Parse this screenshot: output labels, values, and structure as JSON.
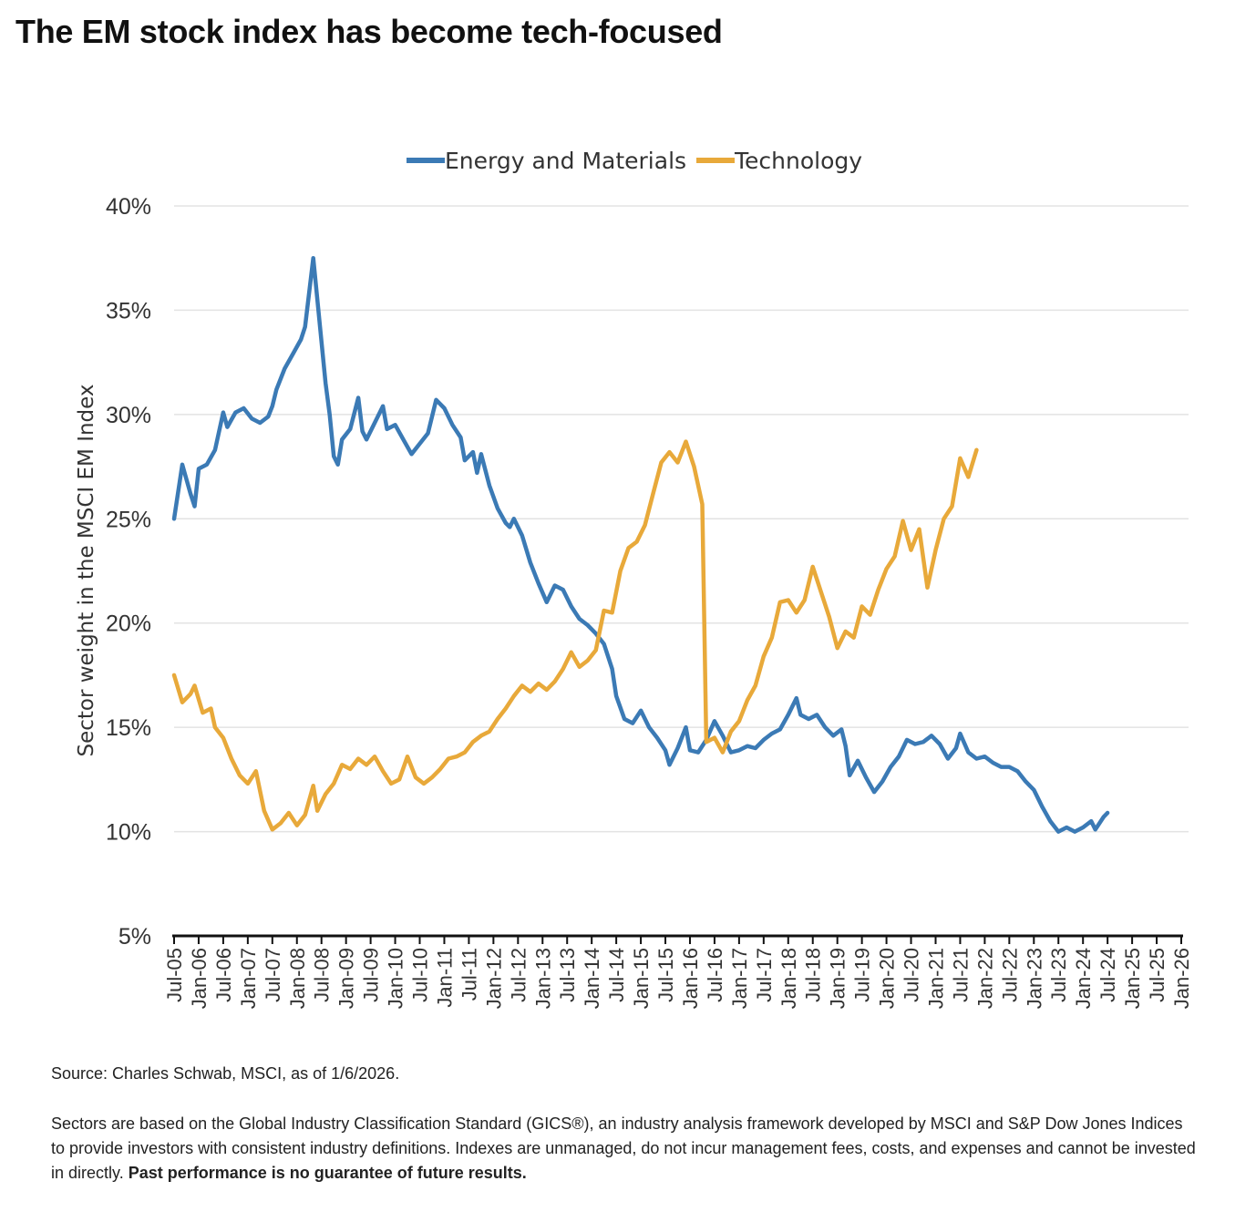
{
  "page": {
    "title": "The EM stock index has become tech-focused",
    "source": "Source: Charles Schwab, MSCI, as of 1/6/2026.",
    "disclaimer": "Sectors are based on the Global Industry Classification Standard (GICS®), an industry analysis framework developed by MSCI and S&P Dow Jones Indices to provide investors with consistent industry definitions. Indexes are unmanaged, do not incur management fees, costs, and expenses and cannot be invested in directly. ",
    "disclaimer_bold": "Past performance is no guarantee of future results."
  },
  "chart_data": {
    "type": "line",
    "title": "The EM stock index has become tech-focused",
    "xlabel": "",
    "ylabel": "Sector weight in the MSCI EM Index",
    "ylim": [
      5,
      40
    ],
    "y_ticks": [
      "5%",
      "10%",
      "15%",
      "20%",
      "25%",
      "30%",
      "35%",
      "40%"
    ],
    "x_range": [
      "2005-07",
      "2026-01"
    ],
    "x_ticks": [
      "Jul-05",
      "Jan-06",
      "Jul-06",
      "Jan-07",
      "Jul-07",
      "Jan-08",
      "Jul-08",
      "Jan-09",
      "Jul-09",
      "Jan-10",
      "Jul-10",
      "Jan-11",
      "Jul-11",
      "Jan-12",
      "Jul-12",
      "Jan-13",
      "Jul-13",
      "Jan-14",
      "Jul-14",
      "Jan-15",
      "Jul-15",
      "Jan-16",
      "Jul-16",
      "Jan-17",
      "Jul-17",
      "Jan-18",
      "Jul-18",
      "Jan-19",
      "Jul-19",
      "Jan-20",
      "Jul-20",
      "Jan-21",
      "Jul-21",
      "Jan-22",
      "Jul-22",
      "Jan-23",
      "Jul-23",
      "Jan-24",
      "Jul-24",
      "Jan-25",
      "Jul-25",
      "Jan-26"
    ],
    "grid": true,
    "legend_position": "top-center",
    "series": [
      {
        "name": "Energy and Materials",
        "color": "#3b7ab5",
        "points": [
          [
            "2005-07",
            25.0
          ],
          [
            "2005-09",
            27.6
          ],
          [
            "2005-11",
            26.2
          ],
          [
            "2005-12",
            25.6
          ],
          [
            "2006-01",
            27.4
          ],
          [
            "2006-03",
            27.6
          ],
          [
            "2006-05",
            28.3
          ],
          [
            "2006-07",
            30.1
          ],
          [
            "2006-08",
            29.4
          ],
          [
            "2006-10",
            30.1
          ],
          [
            "2006-12",
            30.3
          ],
          [
            "2007-02",
            29.8
          ],
          [
            "2007-04",
            29.6
          ],
          [
            "2007-06",
            29.9
          ],
          [
            "2007-07",
            30.4
          ],
          [
            "2007-08",
            31.2
          ],
          [
            "2007-10",
            32.2
          ],
          [
            "2007-12",
            32.9
          ],
          [
            "2008-02",
            33.6
          ],
          [
            "2008-03",
            34.2
          ],
          [
            "2008-05",
            37.5
          ],
          [
            "2008-06",
            35.5
          ],
          [
            "2008-07",
            33.5
          ],
          [
            "2008-08",
            31.5
          ],
          [
            "2008-09",
            30.0
          ],
          [
            "2008-10",
            28.0
          ],
          [
            "2008-11",
            27.6
          ],
          [
            "2008-12",
            28.8
          ],
          [
            "2009-02",
            29.3
          ],
          [
            "2009-04",
            30.8
          ],
          [
            "2009-05",
            29.2
          ],
          [
            "2009-06",
            28.8
          ],
          [
            "2009-08",
            29.6
          ],
          [
            "2009-10",
            30.4
          ],
          [
            "2009-11",
            29.3
          ],
          [
            "2010-01",
            29.5
          ],
          [
            "2010-03",
            28.8
          ],
          [
            "2010-05",
            28.1
          ],
          [
            "2010-07",
            28.6
          ],
          [
            "2010-09",
            29.1
          ],
          [
            "2010-11",
            30.7
          ],
          [
            "2011-01",
            30.3
          ],
          [
            "2011-03",
            29.5
          ],
          [
            "2011-05",
            28.9
          ],
          [
            "2011-06",
            27.8
          ],
          [
            "2011-08",
            28.2
          ],
          [
            "2011-09",
            27.2
          ],
          [
            "2011-10",
            28.1
          ],
          [
            "2011-12",
            26.6
          ],
          [
            "2012-02",
            25.5
          ],
          [
            "2012-04",
            24.8
          ],
          [
            "2012-05",
            24.6
          ],
          [
            "2012-06",
            25.0
          ],
          [
            "2012-08",
            24.2
          ],
          [
            "2012-10",
            22.9
          ],
          [
            "2012-12",
            21.9
          ],
          [
            "2013-02",
            21.0
          ],
          [
            "2013-04",
            21.8
          ],
          [
            "2013-06",
            21.6
          ],
          [
            "2013-08",
            20.8
          ],
          [
            "2013-10",
            20.2
          ],
          [
            "2013-12",
            19.9
          ],
          [
            "2014-02",
            19.5
          ],
          [
            "2014-04",
            19.0
          ],
          [
            "2014-06",
            17.8
          ],
          [
            "2014-07",
            16.5
          ],
          [
            "2014-09",
            15.4
          ],
          [
            "2014-11",
            15.2
          ],
          [
            "2015-01",
            15.8
          ],
          [
            "2015-03",
            15.0
          ],
          [
            "2015-05",
            14.5
          ],
          [
            "2015-07",
            13.9
          ],
          [
            "2015-08",
            13.2
          ],
          [
            "2015-10",
            14.0
          ],
          [
            "2015-12",
            15.0
          ],
          [
            "2016-01",
            13.9
          ],
          [
            "2016-03",
            13.8
          ],
          [
            "2016-05",
            14.4
          ],
          [
            "2016-07",
            15.3
          ],
          [
            "2016-09",
            14.6
          ],
          [
            "2016-11",
            13.8
          ],
          [
            "2017-01",
            13.9
          ],
          [
            "2017-03",
            14.1
          ],
          [
            "2017-05",
            14.0
          ],
          [
            "2017-07",
            14.4
          ],
          [
            "2017-09",
            14.7
          ],
          [
            "2017-11",
            14.9
          ],
          [
            "2018-01",
            15.6
          ],
          [
            "2018-03",
            16.4
          ],
          [
            "2018-04",
            15.6
          ],
          [
            "2018-06",
            15.4
          ],
          [
            "2018-08",
            15.6
          ],
          [
            "2018-10",
            15.0
          ],
          [
            "2018-12",
            14.6
          ],
          [
            "2019-02",
            14.9
          ],
          [
            "2019-03",
            14.1
          ],
          [
            "2019-04",
            12.7
          ],
          [
            "2019-06",
            13.4
          ],
          [
            "2019-08",
            12.6
          ],
          [
            "2019-10",
            11.9
          ],
          [
            "2019-12",
            12.4
          ],
          [
            "2020-02",
            13.1
          ],
          [
            "2020-04",
            13.6
          ],
          [
            "2020-06",
            14.4
          ],
          [
            "2020-08",
            14.2
          ],
          [
            "2020-10",
            14.3
          ],
          [
            "2020-12",
            14.6
          ],
          [
            "2021-02",
            14.2
          ],
          [
            "2021-04",
            13.5
          ],
          [
            "2021-06",
            14.0
          ],
          [
            "2021-07",
            14.7
          ],
          [
            "2021-09",
            13.8
          ],
          [
            "2021-11",
            13.5
          ],
          [
            "2022-01",
            13.6
          ],
          [
            "2022-03",
            13.3
          ],
          [
            "2022-05",
            13.1
          ],
          [
            "2022-07",
            13.1
          ],
          [
            "2022-09",
            12.9
          ],
          [
            "2022-11",
            12.4
          ],
          [
            "2023-01",
            12.0
          ],
          [
            "2023-03",
            11.2
          ],
          [
            "2023-05",
            10.5
          ],
          [
            "2023-07",
            10.0
          ],
          [
            "2023-09",
            10.2
          ],
          [
            "2023-11",
            10.0
          ],
          [
            "2024-01",
            10.2
          ],
          [
            "2024-03",
            10.5
          ],
          [
            "2024-04",
            10.1
          ],
          [
            "2024-06",
            10.7
          ],
          [
            "2024-07",
            10.9
          ]
        ]
      },
      {
        "name": "Technology",
        "color": "#e8a93a",
        "points": [
          [
            "2005-07",
            17.5
          ],
          [
            "2005-09",
            16.2
          ],
          [
            "2005-11",
            16.6
          ],
          [
            "2005-12",
            17.0
          ],
          [
            "2006-02",
            15.7
          ],
          [
            "2006-04",
            15.9
          ],
          [
            "2006-05",
            15.0
          ],
          [
            "2006-07",
            14.5
          ],
          [
            "2006-09",
            13.5
          ],
          [
            "2006-11",
            12.7
          ],
          [
            "2007-01",
            12.3
          ],
          [
            "2007-03",
            12.9
          ],
          [
            "2007-05",
            11.0
          ],
          [
            "2007-07",
            10.1
          ],
          [
            "2007-09",
            10.4
          ],
          [
            "2007-11",
            10.9
          ],
          [
            "2008-01",
            10.3
          ],
          [
            "2008-03",
            10.8
          ],
          [
            "2008-05",
            12.2
          ],
          [
            "2008-06",
            11.0
          ],
          [
            "2008-08",
            11.8
          ],
          [
            "2008-10",
            12.3
          ],
          [
            "2008-12",
            13.2
          ],
          [
            "2009-02",
            13.0
          ],
          [
            "2009-04",
            13.5
          ],
          [
            "2009-06",
            13.2
          ],
          [
            "2009-08",
            13.6
          ],
          [
            "2009-10",
            12.9
          ],
          [
            "2009-12",
            12.3
          ],
          [
            "2010-02",
            12.5
          ],
          [
            "2010-04",
            13.6
          ],
          [
            "2010-06",
            12.6
          ],
          [
            "2010-08",
            12.3
          ],
          [
            "2010-10",
            12.6
          ],
          [
            "2010-12",
            13.0
          ],
          [
            "2011-02",
            13.5
          ],
          [
            "2011-04",
            13.6
          ],
          [
            "2011-06",
            13.8
          ],
          [
            "2011-08",
            14.3
          ],
          [
            "2011-10",
            14.6
          ],
          [
            "2011-12",
            14.8
          ],
          [
            "2012-02",
            15.4
          ],
          [
            "2012-04",
            15.9
          ],
          [
            "2012-06",
            16.5
          ],
          [
            "2012-08",
            17.0
          ],
          [
            "2012-10",
            16.7
          ],
          [
            "2012-12",
            17.1
          ],
          [
            "2013-02",
            16.8
          ],
          [
            "2013-04",
            17.2
          ],
          [
            "2013-06",
            17.8
          ],
          [
            "2013-08",
            18.6
          ],
          [
            "2013-10",
            17.9
          ],
          [
            "2013-12",
            18.2
          ],
          [
            "2014-02",
            18.7
          ],
          [
            "2014-04",
            20.6
          ],
          [
            "2014-06",
            20.5
          ],
          [
            "2014-08",
            22.5
          ],
          [
            "2014-10",
            23.6
          ],
          [
            "2014-12",
            23.9
          ],
          [
            "2015-02",
            24.7
          ],
          [
            "2015-04",
            26.2
          ],
          [
            "2015-06",
            27.7
          ],
          [
            "2015-08",
            28.2
          ],
          [
            "2015-10",
            27.7
          ],
          [
            "2015-12",
            28.7
          ],
          [
            "2016-02",
            27.5
          ],
          [
            "2016-04",
            25.7
          ],
          [
            "2016-05",
            14.3
          ],
          [
            "2016-07",
            14.5
          ],
          [
            "2016-09",
            13.8
          ],
          [
            "2016-11",
            14.8
          ],
          [
            "2017-01",
            15.3
          ],
          [
            "2017-03",
            16.3
          ],
          [
            "2017-05",
            17.0
          ],
          [
            "2017-07",
            18.4
          ],
          [
            "2017-09",
            19.3
          ],
          [
            "2017-11",
            21.0
          ],
          [
            "2018-01",
            21.1
          ],
          [
            "2018-03",
            20.5
          ],
          [
            "2018-05",
            21.1
          ],
          [
            "2018-07",
            22.7
          ],
          [
            "2018-09",
            21.5
          ],
          [
            "2018-11",
            20.3
          ],
          [
            "2019-01",
            18.8
          ],
          [
            "2019-03",
            19.6
          ],
          [
            "2019-05",
            19.3
          ],
          [
            "2019-07",
            20.8
          ],
          [
            "2019-09",
            20.4
          ],
          [
            "2019-11",
            21.6
          ],
          [
            "2020-01",
            22.6
          ],
          [
            "2020-03",
            23.2
          ],
          [
            "2020-05",
            24.9
          ],
          [
            "2020-07",
            23.5
          ],
          [
            "2020-09",
            24.5
          ],
          [
            "2020-11",
            21.7
          ],
          [
            "2021-01",
            23.5
          ],
          [
            "2021-03",
            25.0
          ],
          [
            "2021-05",
            25.6
          ],
          [
            "2021-07",
            27.9
          ],
          [
            "2021-09",
            27.0
          ],
          [
            "2021-11",
            28.3
          ]
        ]
      }
    ]
  }
}
